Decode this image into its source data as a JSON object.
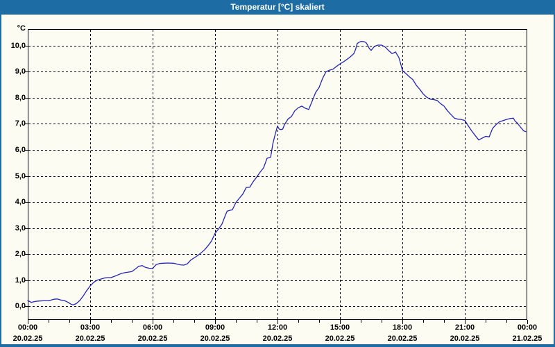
{
  "window": {
    "title": "Temperatur [°C] skaliert"
  },
  "colors": {
    "titlebar": "#1d6da4",
    "frame": "#1d6da4",
    "background": "#fcfcf2",
    "plot_border": "#000000",
    "gridline": "#000000",
    "tick_text": "#000000",
    "title_text": "#ffffff",
    "series_line": "#2323b4"
  },
  "chart_data": {
    "type": "line",
    "title": "Temperatur [°C] skaliert",
    "xlabel": "",
    "ylabel": "°C",
    "grid": true,
    "grid_style": "dashed",
    "legend": "none",
    "xlim_hours": [
      0,
      24
    ],
    "ylim": [
      -0.52,
      10.63
    ],
    "y_ticks": [
      {
        "label": "10,0",
        "value": 10
      },
      {
        "label": "9,0",
        "value": 9
      },
      {
        "label": "8,0",
        "value": 8
      },
      {
        "label": "7,0",
        "value": 7
      },
      {
        "label": "6,0",
        "value": 6
      },
      {
        "label": "5,0",
        "value": 5
      },
      {
        "label": "4,0",
        "value": 4
      },
      {
        "label": "3,0",
        "value": 3
      },
      {
        "label": "2,0",
        "value": 2
      },
      {
        "label": "1,0",
        "value": 1
      },
      {
        "label": "0,0",
        "value": 0
      }
    ],
    "x_ticks": [
      {
        "time": "00:00",
        "date": "20.02.25",
        "hour": 0
      },
      {
        "time": "03:00",
        "date": "20.02.25",
        "hour": 3
      },
      {
        "time": "06:00",
        "date": "20.02.25",
        "hour": 6
      },
      {
        "time": "09:00",
        "date": "20.02.25",
        "hour": 9
      },
      {
        "time": "12:00",
        "date": "20.02.25",
        "hour": 12
      },
      {
        "time": "15:00",
        "date": "20.02.25",
        "hour": 15
      },
      {
        "time": "18:00",
        "date": "20.02.25",
        "hour": 18
      },
      {
        "time": "21:00",
        "date": "20.02.25",
        "hour": 21
      },
      {
        "time": "00:00",
        "date": "21.02.25",
        "hour": 24
      }
    ],
    "minor_tick_interval_hours": 1,
    "series": [
      {
        "name": "Temperatur",
        "unit": "°C",
        "points": [
          [
            0.0,
            0.22
          ],
          [
            0.17,
            0.15
          ],
          [
            0.33,
            0.18
          ],
          [
            0.5,
            0.2
          ],
          [
            0.75,
            0.21
          ],
          [
            1.0,
            0.21
          ],
          [
            1.25,
            0.27
          ],
          [
            1.42,
            0.28
          ],
          [
            1.58,
            0.24
          ],
          [
            1.75,
            0.22
          ],
          [
            1.92,
            0.16
          ],
          [
            2.08,
            0.08
          ],
          [
            2.17,
            0.05
          ],
          [
            2.33,
            0.1
          ],
          [
            2.5,
            0.22
          ],
          [
            2.67,
            0.4
          ],
          [
            2.83,
            0.6
          ],
          [
            3.0,
            0.78
          ],
          [
            3.17,
            0.92
          ],
          [
            3.33,
            1.0
          ],
          [
            3.5,
            1.04
          ],
          [
            3.67,
            1.08
          ],
          [
            3.83,
            1.1
          ],
          [
            4.0,
            1.1
          ],
          [
            4.17,
            1.15
          ],
          [
            4.33,
            1.2
          ],
          [
            4.5,
            1.26
          ],
          [
            4.67,
            1.29
          ],
          [
            4.83,
            1.31
          ],
          [
            5.0,
            1.33
          ],
          [
            5.17,
            1.43
          ],
          [
            5.33,
            1.53
          ],
          [
            5.5,
            1.56
          ],
          [
            5.67,
            1.49
          ],
          [
            5.83,
            1.46
          ],
          [
            6.0,
            1.45
          ],
          [
            6.17,
            1.6
          ],
          [
            6.33,
            1.64
          ],
          [
            6.5,
            1.65
          ],
          [
            6.75,
            1.66
          ],
          [
            7.0,
            1.65
          ],
          [
            7.17,
            1.62
          ],
          [
            7.33,
            1.59
          ],
          [
            7.5,
            1.58
          ],
          [
            7.67,
            1.63
          ],
          [
            7.83,
            1.77
          ],
          [
            8.0,
            1.86
          ],
          [
            8.17,
            1.95
          ],
          [
            8.33,
            2.05
          ],
          [
            8.5,
            2.17
          ],
          [
            8.67,
            2.33
          ],
          [
            8.83,
            2.5
          ],
          [
            9.0,
            2.8
          ],
          [
            9.17,
            2.97
          ],
          [
            9.33,
            3.15
          ],
          [
            9.5,
            3.5
          ],
          [
            9.58,
            3.65
          ],
          [
            9.75,
            3.69
          ],
          [
            9.83,
            3.7
          ],
          [
            10.0,
            3.98
          ],
          [
            10.17,
            4.15
          ],
          [
            10.33,
            4.3
          ],
          [
            10.5,
            4.56
          ],
          [
            10.67,
            4.57
          ],
          [
            10.83,
            4.78
          ],
          [
            11.0,
            4.96
          ],
          [
            11.17,
            5.15
          ],
          [
            11.33,
            5.31
          ],
          [
            11.5,
            5.68
          ],
          [
            11.67,
            5.72
          ],
          [
            11.78,
            6.25
          ],
          [
            11.89,
            6.6
          ],
          [
            12.0,
            6.92
          ],
          [
            12.08,
            6.8
          ],
          [
            12.17,
            6.78
          ],
          [
            12.25,
            6.8
          ],
          [
            12.33,
            6.96
          ],
          [
            12.5,
            7.18
          ],
          [
            12.67,
            7.28
          ],
          [
            12.83,
            7.5
          ],
          [
            13.0,
            7.62
          ],
          [
            13.17,
            7.68
          ],
          [
            13.33,
            7.6
          ],
          [
            13.5,
            7.55
          ],
          [
            13.67,
            7.88
          ],
          [
            13.83,
            8.2
          ],
          [
            14.0,
            8.4
          ],
          [
            14.17,
            8.75
          ],
          [
            14.33,
            9.0
          ],
          [
            14.5,
            9.06
          ],
          [
            14.67,
            9.1
          ],
          [
            14.83,
            9.2
          ],
          [
            15.0,
            9.3
          ],
          [
            15.17,
            9.38
          ],
          [
            15.33,
            9.47
          ],
          [
            15.5,
            9.57
          ],
          [
            15.67,
            9.7
          ],
          [
            15.75,
            9.85
          ],
          [
            15.83,
            10.08
          ],
          [
            15.92,
            10.13
          ],
          [
            16.0,
            10.16
          ],
          [
            16.08,
            10.16
          ],
          [
            16.17,
            10.15
          ],
          [
            16.25,
            10.12
          ],
          [
            16.33,
            10.02
          ],
          [
            16.42,
            9.88
          ],
          [
            16.5,
            9.82
          ],
          [
            16.58,
            9.9
          ],
          [
            16.67,
            9.98
          ],
          [
            16.83,
            10.02
          ],
          [
            17.0,
            10.02
          ],
          [
            17.17,
            9.95
          ],
          [
            17.33,
            9.82
          ],
          [
            17.5,
            9.7
          ],
          [
            17.58,
            9.72
          ],
          [
            17.67,
            9.76
          ],
          [
            17.75,
            9.65
          ],
          [
            17.83,
            9.55
          ],
          [
            17.92,
            9.3
          ],
          [
            18.0,
            9.05
          ],
          [
            18.17,
            8.93
          ],
          [
            18.33,
            8.81
          ],
          [
            18.5,
            8.7
          ],
          [
            18.67,
            8.48
          ],
          [
            18.83,
            8.33
          ],
          [
            19.0,
            8.15
          ],
          [
            19.17,
            8.02
          ],
          [
            19.33,
            7.95
          ],
          [
            19.5,
            7.93
          ],
          [
            19.67,
            7.9
          ],
          [
            19.83,
            7.78
          ],
          [
            20.0,
            7.68
          ],
          [
            20.17,
            7.5
          ],
          [
            20.33,
            7.36
          ],
          [
            20.5,
            7.22
          ],
          [
            20.67,
            7.18
          ],
          [
            20.83,
            7.17
          ],
          [
            21.0,
            7.13
          ],
          [
            21.17,
            6.92
          ],
          [
            21.33,
            6.73
          ],
          [
            21.5,
            6.55
          ],
          [
            21.67,
            6.38
          ],
          [
            21.83,
            6.45
          ],
          [
            22.0,
            6.52
          ],
          [
            22.17,
            6.5
          ],
          [
            22.33,
            6.82
          ],
          [
            22.5,
            6.97
          ],
          [
            22.67,
            7.08
          ],
          [
            22.83,
            7.12
          ],
          [
            23.0,
            7.17
          ],
          [
            23.17,
            7.2
          ],
          [
            23.33,
            7.22
          ],
          [
            23.42,
            7.1
          ],
          [
            23.5,
            7.05
          ],
          [
            23.67,
            6.88
          ],
          [
            23.83,
            6.73
          ],
          [
            23.93,
            6.7
          ]
        ]
      }
    ]
  }
}
